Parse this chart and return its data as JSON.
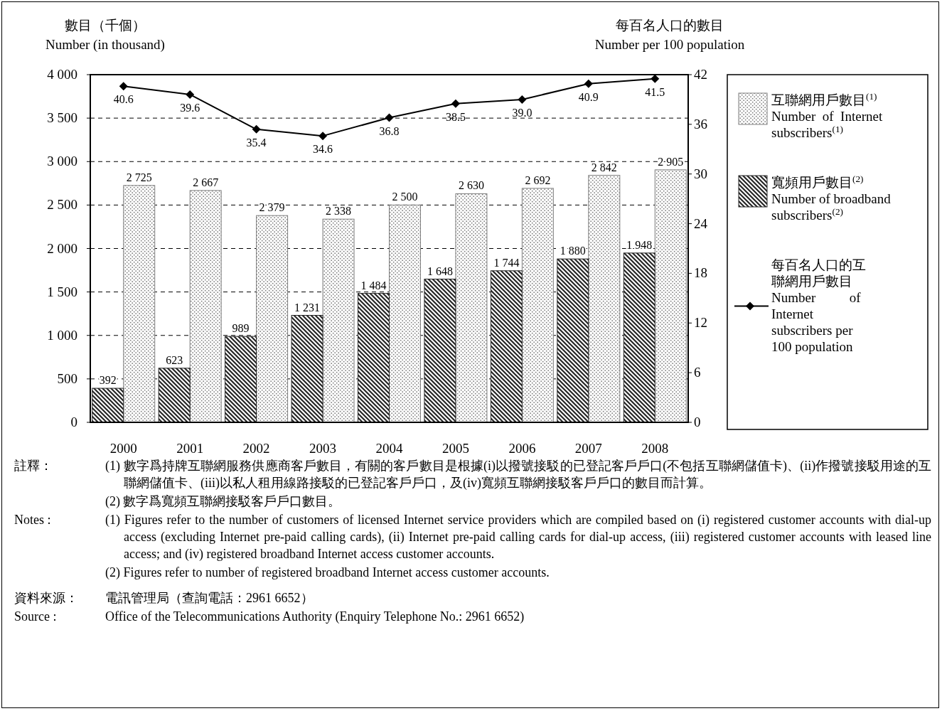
{
  "chart_data": {
    "type": "bar",
    "ylabel": "數目（千個）\nNumber (in thousand)",
    "y2label": "每百名人口的數目\nNumber per 100 population",
    "categories": [
      "2000",
      "2001",
      "2002",
      "2003",
      "2004",
      "2005",
      "2006",
      "2007",
      "2008"
    ],
    "series": [
      {
        "name": "互聯網用戶數目$^{(1)}$\nNumber  of  Internet\nsubscribers$^{(1)}$",
        "color": "#7f7f7f",
        "values": [
          2725,
          2667,
          2379,
          2338,
          2500,
          2630,
          2692,
          2842,
          2905
        ],
        "value_labels": [
          "2 725",
          "2 667",
          "2 379",
          "2 338",
          "2 500",
          "2 630",
          "2 692",
          "2 842",
          "2 905"
        ]
      },
      {
        "name": "寬頻用戶數目$^{(2)}$\nNumber of broadband\nsubscribers$^{(2)}$",
        "color": "#262626",
        "values": [
          392,
          623,
          989,
          1231,
          1484,
          1648,
          1744,
          1880,
          1948
        ],
        "value_labels": [
          "392",
          "623",
          "989",
          "1 231",
          "1 484",
          "1 648",
          "1 744",
          "1 880",
          "1 948"
        ]
      },
      {
        "name": "每百名人口的互聯網用戶數目\nNumber          of\nInternet\nsubscribers per\n100 population",
        "type": "line",
        "axis": "y2",
        "color": "#000000",
        "marker": "diamond",
        "values": [
          40.6,
          39.6,
          35.4,
          34.6,
          36.8,
          38.5,
          39.0,
          40.9,
          41.5
        ],
        "value_labels": [
          "40.6",
          "39.6",
          "35.4",
          "34.6",
          "36.8",
          "38.5",
          "39.0",
          "40.9",
          "41.5"
        ]
      }
    ],
    "ylim": [
      0,
      4000
    ],
    "yticks": [
      0,
      {
        "value": 500,
        "label": "500"
      },
      {
        "value": 1000,
        "label": "1 000"
      },
      {
        "value": 1500,
        "label": "1 500"
      },
      {
        "value": 2000,
        "label": "2 000"
      },
      {
        "value": 2500,
        "label": "2 500"
      },
      {
        "value": 3000,
        "label": "3 000"
      },
      {
        "value": 3500,
        "label": "3 500"
      },
      {
        "value": 4000,
        "label": "4 000"
      }
    ],
    "y2lim": [
      0,
      42
    ],
    "y2ticks": [
      0,
      6,
      12,
      18,
      24,
      30,
      36,
      42
    ],
    "grid": "y",
    "legend": "right",
    "annotations": [
      "註釋：",
      "(1) 數字爲持牌互聯網服務供應商客戶數目，有關的客戶數目是根據(i)以撥號接駁的已登記客戶戶口(不包括互聯網儲值卡)、(ii)作撥號接駁用途的互聯網儲值卡、(iii)以私人租用線路接駁的已登記客戶戶口，及(iv)寬頻互聯網接駁客戶戶口的數目而計算。",
      "(2) 數字爲寬頻互聯網接駁客戶戶口數目。",
      "Notes :",
      "(1) Figures refer to the number of customers of licensed Internet service providers which are compiled based on (i) registered customer accounts with dial-up access (excluding Internet pre-paid calling cards), (ii) Internet pre-paid calling cards for dial-up access, (iii) registered customer accounts with leased line access; and (iv) registered broadband Internet access customer accounts.",
      "(2) Figures refer to number of registered broadband Internet access customer accounts.",
      "資料來源：",
      "電訊管理局（查詢電話：2961 6652）",
      "Source :",
      "Office of the Telecommunications Authority (Enquiry Telephone No.: 2961 6652)"
    ]
  }
}
